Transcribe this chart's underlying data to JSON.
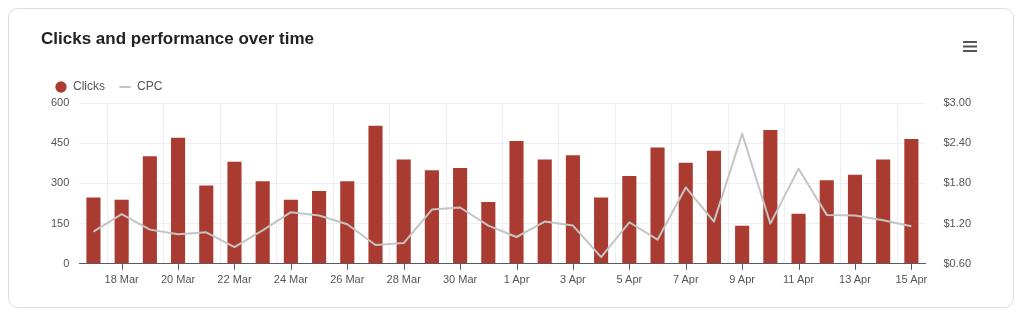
{
  "chart_data": {
    "type": "bar",
    "title": "Clicks and performance over time",
    "categories": [
      null,
      "18 Mar",
      null,
      "20 Mar",
      null,
      "22 Mar",
      null,
      "24 Mar",
      null,
      "26 Mar",
      null,
      "28 Mar",
      null,
      "30 Mar",
      null,
      "1 Apr",
      null,
      "3 Apr",
      null,
      "5 Apr",
      null,
      "7 Apr",
      null,
      "9 Apr",
      null,
      "11 Apr",
      null,
      "13 Apr",
      null,
      "15 Apr"
    ],
    "series": [
      {
        "name": "Clicks",
        "color": "#a93b31",
        "values": [
          247,
          239,
          401,
          470,
          292,
          381,
          308,
          239,
          272,
          308,
          515,
          389,
          349,
          357,
          231,
          458,
          389,
          405,
          247,
          328,
          434,
          377,
          422,
          142,
          499,
          187,
          312,
          332,
          389,
          466
        ]
      },
      {
        "name": "CPC",
        "type": "line",
        "axis": "y2",
        "color": "#c4c4c4",
        "values": [
          1.08,
          1.34,
          1.11,
          1.04,
          1.07,
          0.85,
          1.1,
          1.37,
          1.32,
          1.19,
          0.88,
          0.91,
          1.41,
          1.44,
          1.17,
          1.0,
          1.23,
          1.17,
          0.7,
          1.22,
          0.96,
          1.74,
          1.23,
          2.54,
          1.2,
          2.02,
          1.33,
          1.32,
          1.25,
          1.16
        ]
      }
    ],
    "ylim": [
      0,
      600
    ],
    "yticks": [
      0,
      150,
      300,
      450,
      600
    ],
    "y2lim": [
      0.6,
      3.0
    ],
    "y2ticks": [
      {
        "value": 0.6,
        "label": "$0.60"
      },
      {
        "value": 1.2,
        "label": "$1.20"
      },
      {
        "value": 1.8,
        "label": "$1.80"
      },
      {
        "value": 2.4,
        "label": "$2.40"
      },
      {
        "value": 3.0,
        "label": "$3.00"
      }
    ],
    "grid": true,
    "legend": "top left",
    "marker": "none",
    "line_style": "solid"
  }
}
